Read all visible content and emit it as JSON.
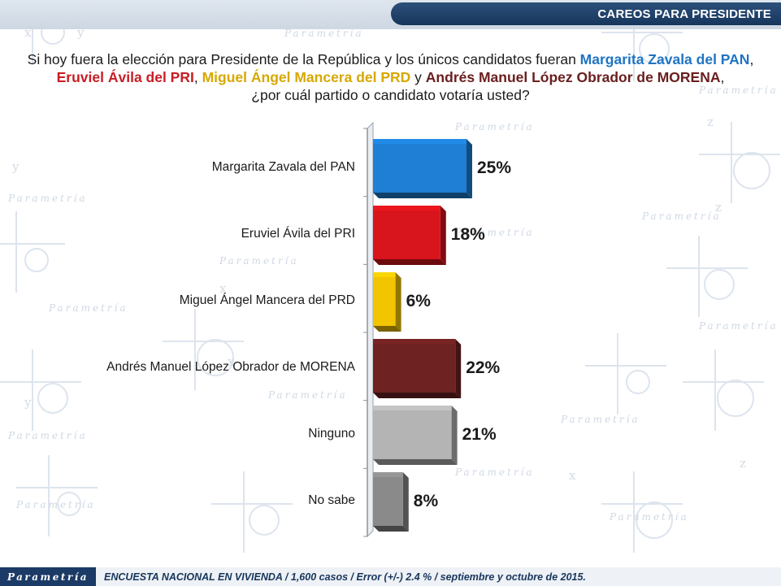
{
  "header": {
    "title": "CAREOS PARA PRESIDENTE"
  },
  "question": {
    "part1": "Si hoy fuera la elección para Presidente de la República y los únicos candidatos fueran ",
    "cand_pan": "Margarita Zavala del PAN",
    "sep1": ", ",
    "cand_pri": "Eruviel Ávila del PRI",
    "sep2": ", ",
    "cand_prd": "Miguel Ángel Mancera del PRD",
    "sep3": " y ",
    "cand_morena": "Andrés Manuel López Obrador de MORENA",
    "part2": ",",
    "part3": "¿por cuál partido o candidato votaría usted?"
  },
  "background": {
    "watermark": "Parametría",
    "axis_letters": [
      "x",
      "y",
      "z"
    ]
  },
  "chart_data": {
    "type": "bar",
    "orientation": "horizontal",
    "categories": [
      "Margarita Zavala del PAN",
      "Eruviel Ávila del PRI",
      "Miguel Ángel Mancera del PRD",
      "Andrés Manuel López Obrador de MORENA",
      "Ninguno",
      "No sabe"
    ],
    "values": [
      25,
      18,
      6,
      22,
      21,
      8
    ],
    "value_labels": [
      "25%",
      "18%",
      "6%",
      "22%",
      "21%",
      "8%"
    ],
    "colors": [
      "#1e7fd4",
      "#d8141c",
      "#f3c400",
      "#6e2222",
      "#b4b4b4",
      "#8a8a8a"
    ],
    "xlim": [
      0,
      30
    ],
    "legend": "none",
    "grid": false
  },
  "footer": {
    "logo_text": "Parametría",
    "note": "ENCUESTA NACIONAL EN VIVIENDA / 1,600 casos / Error (+/-) 2.4 % / septiembre y octubre de 2015."
  }
}
